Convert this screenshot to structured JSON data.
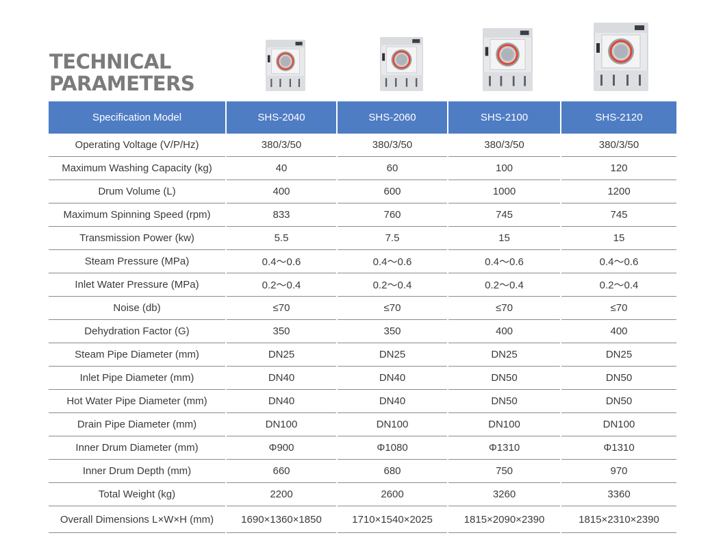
{
  "title": {
    "line1": "TECHNICAL",
    "line2": "PARAMETERS"
  },
  "colors": {
    "header_bg": "#4f7dc4",
    "title": "#7b7b7b",
    "drum_ring": "#e2462d"
  },
  "machines": [
    {
      "name": "machine-shs-2040"
    },
    {
      "name": "machine-shs-2060"
    },
    {
      "name": "machine-shs-2100"
    },
    {
      "name": "machine-shs-2120"
    }
  ],
  "table": {
    "header": [
      "Specification Model",
      "SHS-2040",
      "SHS-2060",
      "SHS-2100",
      "SHS-2120"
    ],
    "rows": [
      [
        "Operating Voltage (V/P/Hz)",
        "380/3/50",
        "380/3/50",
        "380/3/50",
        "380/3/50"
      ],
      [
        "Maximum Washing Capacity (kg)",
        "40",
        "60",
        "100",
        "120"
      ],
      [
        "Drum Volume (L)",
        "400",
        "600",
        "1000",
        "1200"
      ],
      [
        "Maximum Spinning Speed (rpm)",
        "833",
        "760",
        "745",
        "745"
      ],
      [
        "Transmission Power (kw)",
        "5.5",
        "7.5",
        "15",
        "15"
      ],
      [
        "Steam Pressure (MPa)",
        "0.4～0.6",
        "0.4～0.6",
        "0.4～0.6",
        "0.4～0.6"
      ],
      [
        "Inlet Water Pressure (MPa)",
        "0.2～0.4",
        "0.2～0.4",
        "0.2～0.4",
        "0.2～0.4"
      ],
      [
        "Noise (db)",
        "≤70",
        "≤70",
        "≤70",
        "≤70"
      ],
      [
        "Dehydration Factor (G)",
        "350",
        "350",
        "400",
        "400"
      ],
      [
        "Steam Pipe Diameter (mm)",
        "DN25",
        "DN25",
        "DN25",
        "DN25"
      ],
      [
        "Inlet Pipe Diameter (mm)",
        "DN40",
        "DN40",
        "DN50",
        "DN50"
      ],
      [
        "Hot Water Pipe Diameter (mm)",
        "DN40",
        "DN40",
        "DN50",
        "DN50"
      ],
      [
        "Drain Pipe Diameter (mm)",
        "DN100",
        "DN100",
        "DN100",
        "DN100"
      ],
      [
        "Inner Drum Diameter (mm)",
        "Φ900",
        "Φ1080",
        "Φ1310",
        "Φ1310"
      ],
      [
        "Inner Drum Depth (mm)",
        "660",
        "680",
        "750",
        "970"
      ],
      [
        "Total Weight (kg)",
        "2200",
        "2600",
        "3260",
        "3360"
      ],
      [
        "Overall Dimensions L×W×H (mm)",
        "1690×1360×1850",
        "1710×1540×2025",
        "1815×2090×2390",
        "1815×2310×2390"
      ]
    ]
  }
}
